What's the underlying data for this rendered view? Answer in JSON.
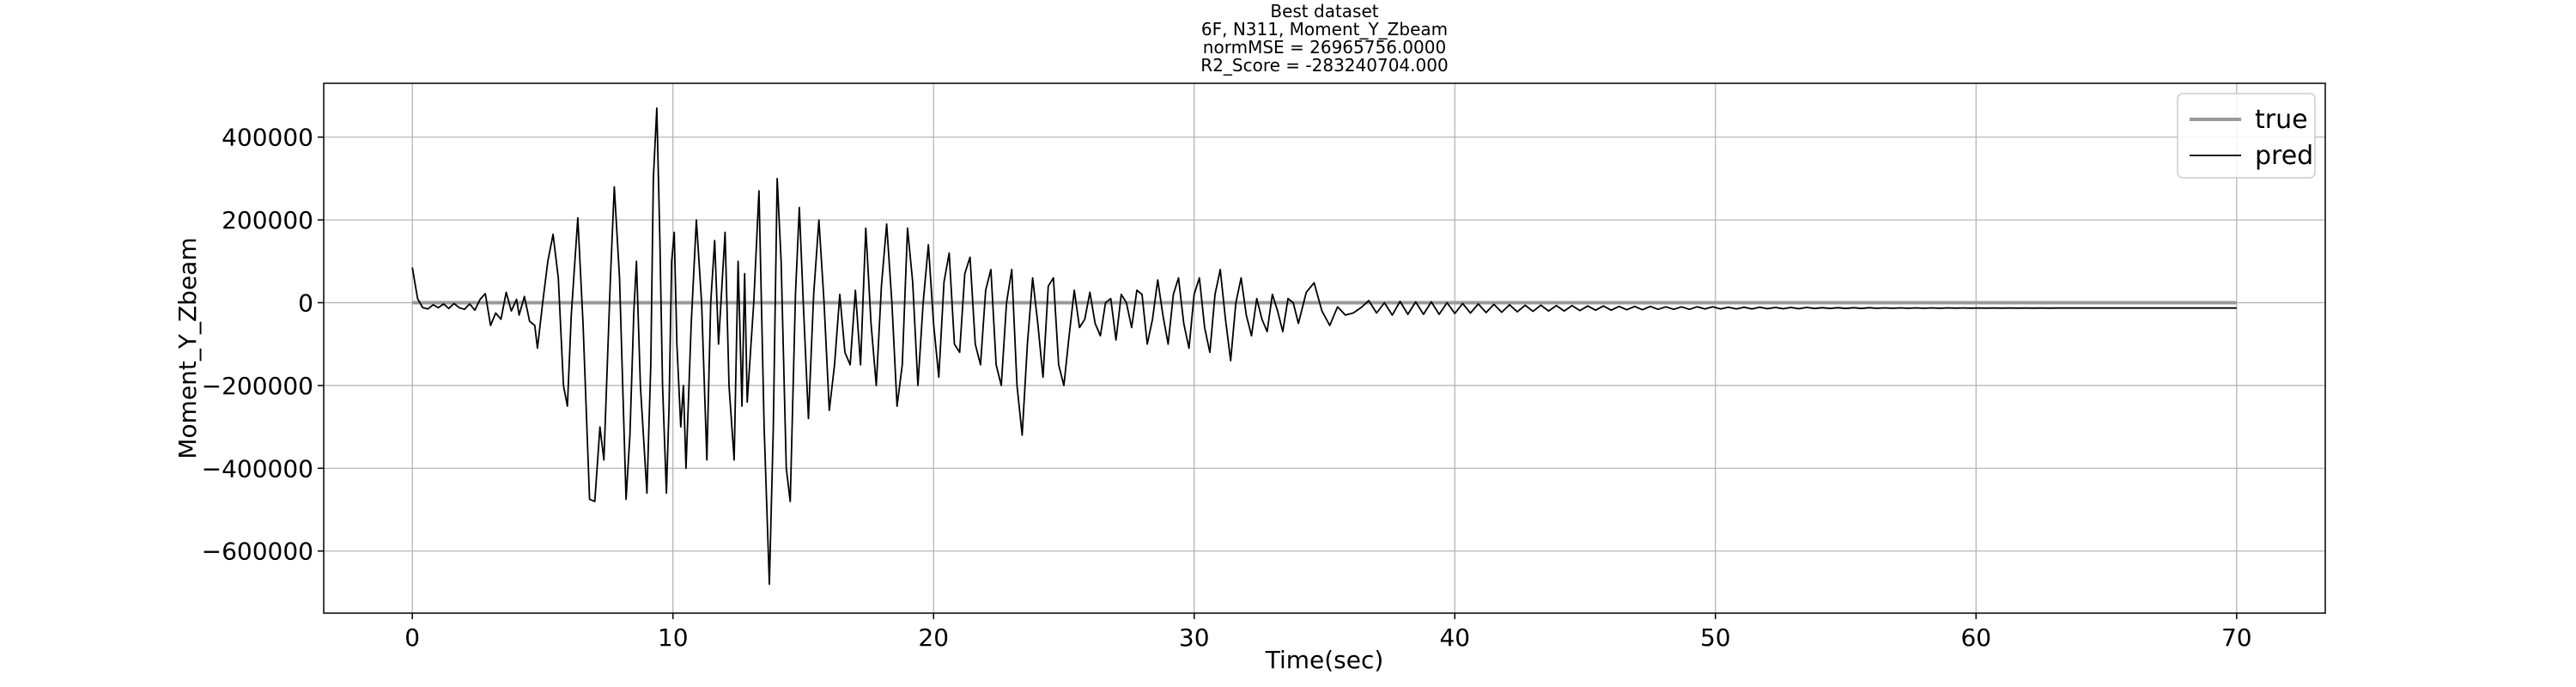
{
  "chart_data": {
    "type": "line",
    "title_lines": [
      "Best dataset",
      "6F, N311, Moment_Y_Zbeam",
      "normMSE = 26965756.0000",
      "R2_Score = -283240704.000"
    ],
    "xlabel": "Time(sec)",
    "ylabel": "Moment_Y_Zbeam",
    "xlim": [
      -3.4,
      73.4
    ],
    "ylim": [
      -750000,
      530000
    ],
    "xticks": [
      0,
      10,
      20,
      30,
      40,
      50,
      60,
      70
    ],
    "yticks": [
      -600000,
      -400000,
      -200000,
      0,
      200000,
      400000
    ],
    "ytick_labels": [
      "−600000",
      "−400000",
      "−200000",
      "0",
      "200000",
      "400000"
    ],
    "xtick_labels": [
      "0",
      "10",
      "20",
      "30",
      "40",
      "50",
      "60",
      "70"
    ],
    "grid": true,
    "legend": "top-right",
    "series": [
      {
        "name": "true",
        "color": "#999999",
        "points": [
          [
            0,
            0
          ],
          [
            70,
            0
          ]
        ]
      },
      {
        "name": "pred",
        "color": "#000000",
        "points": [
          [
            0.0,
            85000
          ],
          [
            0.2,
            10000
          ],
          [
            0.4,
            -12000
          ],
          [
            0.6,
            -15000
          ],
          [
            0.8,
            -5000
          ],
          [
            1.0,
            -12000
          ],
          [
            1.2,
            -3000
          ],
          [
            1.4,
            -14000
          ],
          [
            1.6,
            -2000
          ],
          [
            1.8,
            -12000
          ],
          [
            2.0,
            -16000
          ],
          [
            2.2,
            -3000
          ],
          [
            2.4,
            -18000
          ],
          [
            2.6,
            8000
          ],
          [
            2.8,
            22000
          ],
          [
            3.0,
            -55000
          ],
          [
            3.2,
            -25000
          ],
          [
            3.4,
            -40000
          ],
          [
            3.6,
            25000
          ],
          [
            3.8,
            -20000
          ],
          [
            4.0,
            8000
          ],
          [
            4.1,
            -30000
          ],
          [
            4.3,
            15000
          ],
          [
            4.5,
            -45000
          ],
          [
            4.7,
            -55000
          ],
          [
            4.8,
            -110000
          ],
          [
            5.0,
            0
          ],
          [
            5.2,
            100000
          ],
          [
            5.4,
            165000
          ],
          [
            5.6,
            60000
          ],
          [
            5.8,
            -200000
          ],
          [
            5.95,
            -250000
          ],
          [
            6.1,
            -30000
          ],
          [
            6.35,
            205000
          ],
          [
            6.55,
            -50000
          ],
          [
            6.8,
            -475000
          ],
          [
            7.0,
            -480000
          ],
          [
            7.2,
            -300000
          ],
          [
            7.35,
            -380000
          ],
          [
            7.6,
            60000
          ],
          [
            7.75,
            280000
          ],
          [
            7.95,
            60000
          ],
          [
            8.2,
            -475000
          ],
          [
            8.35,
            -320000
          ],
          [
            8.5,
            -20000
          ],
          [
            8.6,
            100000
          ],
          [
            8.75,
            -200000
          ],
          [
            9.0,
            -460000
          ],
          [
            9.15,
            -150000
          ],
          [
            9.25,
            300000
          ],
          [
            9.38,
            470000
          ],
          [
            9.5,
            150000
          ],
          [
            9.6,
            -200000
          ],
          [
            9.75,
            -460000
          ],
          [
            9.85,
            -250000
          ],
          [
            9.95,
            100000
          ],
          [
            10.05,
            170000
          ],
          [
            10.15,
            -100000
          ],
          [
            10.3,
            -300000
          ],
          [
            10.4,
            -200000
          ],
          [
            10.5,
            -400000
          ],
          [
            10.7,
            -50000
          ],
          [
            10.9,
            200000
          ],
          [
            11.1,
            0
          ],
          [
            11.3,
            -380000
          ],
          [
            11.45,
            0
          ],
          [
            11.6,
            150000
          ],
          [
            11.75,
            -100000
          ],
          [
            12.0,
            170000
          ],
          [
            12.15,
            -200000
          ],
          [
            12.35,
            -380000
          ],
          [
            12.5,
            100000
          ],
          [
            12.65,
            -250000
          ],
          [
            12.75,
            70000
          ],
          [
            12.85,
            -240000
          ],
          [
            13.1,
            0
          ],
          [
            13.3,
            270000
          ],
          [
            13.5,
            -300000
          ],
          [
            13.7,
            -680000
          ],
          [
            13.85,
            -300000
          ],
          [
            14.0,
            300000
          ],
          [
            14.15,
            100000
          ],
          [
            14.35,
            -400000
          ],
          [
            14.5,
            -480000
          ],
          [
            14.7,
            20000
          ],
          [
            14.85,
            230000
          ],
          [
            15.0,
            0
          ],
          [
            15.2,
            -280000
          ],
          [
            15.4,
            20000
          ],
          [
            15.6,
            200000
          ],
          [
            15.8,
            0
          ],
          [
            16.0,
            -260000
          ],
          [
            16.2,
            -150000
          ],
          [
            16.4,
            20000
          ],
          [
            16.6,
            -120000
          ],
          [
            16.8,
            -150000
          ],
          [
            17.0,
            30000
          ],
          [
            17.2,
            -150000
          ],
          [
            17.4,
            180000
          ],
          [
            17.6,
            -50000
          ],
          [
            17.8,
            -200000
          ],
          [
            18.0,
            40000
          ],
          [
            18.2,
            190000
          ],
          [
            18.4,
            0
          ],
          [
            18.6,
            -250000
          ],
          [
            18.8,
            -150000
          ],
          [
            19.0,
            180000
          ],
          [
            19.2,
            50000
          ],
          [
            19.4,
            -200000
          ],
          [
            19.6,
            0
          ],
          [
            19.8,
            140000
          ],
          [
            20.0,
            -50000
          ],
          [
            20.2,
            -180000
          ],
          [
            20.4,
            50000
          ],
          [
            20.6,
            120000
          ],
          [
            20.8,
            -100000
          ],
          [
            21.0,
            -120000
          ],
          [
            21.2,
            70000
          ],
          [
            21.4,
            110000
          ],
          [
            21.6,
            -100000
          ],
          [
            21.8,
            -150000
          ],
          [
            22.0,
            30000
          ],
          [
            22.2,
            80000
          ],
          [
            22.4,
            -150000
          ],
          [
            22.6,
            -200000
          ],
          [
            22.8,
            0
          ],
          [
            23.0,
            80000
          ],
          [
            23.2,
            -200000
          ],
          [
            23.4,
            -320000
          ],
          [
            23.6,
            -100000
          ],
          [
            23.8,
            60000
          ],
          [
            24.0,
            -50000
          ],
          [
            24.2,
            -180000
          ],
          [
            24.4,
            40000
          ],
          [
            24.6,
            60000
          ],
          [
            24.8,
            -150000
          ],
          [
            25.0,
            -200000
          ],
          [
            25.2,
            -80000
          ],
          [
            25.4,
            30000
          ],
          [
            25.6,
            -60000
          ],
          [
            25.8,
            -40000
          ],
          [
            26.0,
            25000
          ],
          [
            26.2,
            -50000
          ],
          [
            26.4,
            -80000
          ],
          [
            26.6,
            0
          ],
          [
            26.8,
            10000
          ],
          [
            27.0,
            -90000
          ],
          [
            27.2,
            20000
          ],
          [
            27.4,
            0
          ],
          [
            27.6,
            -60000
          ],
          [
            27.8,
            30000
          ],
          [
            28.0,
            20000
          ],
          [
            28.2,
            -100000
          ],
          [
            28.4,
            -40000
          ],
          [
            28.6,
            55000
          ],
          [
            28.8,
            -30000
          ],
          [
            29.0,
            -100000
          ],
          [
            29.2,
            20000
          ],
          [
            29.4,
            60000
          ],
          [
            29.6,
            -50000
          ],
          [
            29.8,
            -110000
          ],
          [
            30.0,
            20000
          ],
          [
            30.2,
            60000
          ],
          [
            30.4,
            -60000
          ],
          [
            30.6,
            -120000
          ],
          [
            30.8,
            20000
          ],
          [
            31.0,
            80000
          ],
          [
            31.2,
            -40000
          ],
          [
            31.4,
            -140000
          ],
          [
            31.6,
            0
          ],
          [
            31.8,
            60000
          ],
          [
            32.0,
            -30000
          ],
          [
            32.2,
            -80000
          ],
          [
            32.4,
            10000
          ],
          [
            32.6,
            -40000
          ],
          [
            32.8,
            -70000
          ],
          [
            33.0,
            20000
          ],
          [
            33.2,
            -20000
          ],
          [
            33.4,
            -70000
          ],
          [
            33.6,
            10000
          ],
          [
            33.8,
            0
          ],
          [
            34.0,
            -50000
          ],
          [
            34.3,
            25000
          ],
          [
            34.6,
            48000
          ],
          [
            34.9,
            -20000
          ],
          [
            35.2,
            -55000
          ],
          [
            35.5,
            -10000
          ],
          [
            35.8,
            -30000
          ],
          [
            36.1,
            -25000
          ],
          [
            36.4,
            -12000
          ],
          [
            36.7,
            5000
          ],
          [
            37.0,
            -25000
          ],
          [
            37.3,
            0
          ],
          [
            37.6,
            -30000
          ],
          [
            37.9,
            3000
          ],
          [
            38.2,
            -28000
          ],
          [
            38.5,
            2000
          ],
          [
            38.8,
            -28000
          ],
          [
            39.1,
            2000
          ],
          [
            39.4,
            -28000
          ],
          [
            39.7,
            0
          ],
          [
            40.0,
            -26000
          ],
          [
            40.3,
            -2000
          ],
          [
            40.6,
            -25000
          ],
          [
            40.9,
            -3000
          ],
          [
            41.2,
            -24000
          ],
          [
            41.5,
            -4000
          ],
          [
            41.8,
            -23000
          ],
          [
            42.1,
            -5000
          ],
          [
            42.4,
            -22000
          ],
          [
            42.7,
            -6000
          ],
          [
            43.0,
            -21000
          ],
          [
            43.3,
            -6000
          ],
          [
            43.6,
            -20000
          ],
          [
            43.9,
            -7000
          ],
          [
            44.2,
            -20000
          ],
          [
            44.5,
            -7000
          ],
          [
            44.8,
            -19000
          ],
          [
            45.1,
            -8000
          ],
          [
            45.4,
            -18000
          ],
          [
            45.7,
            -8000
          ],
          [
            46.0,
            -18000
          ],
          [
            46.3,
            -9000
          ],
          [
            46.6,
            -17000
          ],
          [
            46.9,
            -9000
          ],
          [
            47.2,
            -17000
          ],
          [
            47.5,
            -9000
          ],
          [
            47.8,
            -16000
          ],
          [
            48.1,
            -10000
          ],
          [
            48.4,
            -16000
          ],
          [
            48.7,
            -10000
          ],
          [
            49.0,
            -16000
          ],
          [
            49.3,
            -10000
          ],
          [
            49.6,
            -15000
          ],
          [
            49.9,
            -10000
          ],
          [
            50.2,
            -15000
          ],
          [
            50.5,
            -11000
          ],
          [
            50.8,
            -15000
          ],
          [
            51.1,
            -11000
          ],
          [
            51.4,
            -15000
          ],
          [
            51.7,
            -11000
          ],
          [
            52.0,
            -14500
          ],
          [
            52.3,
            -11500
          ],
          [
            52.6,
            -14500
          ],
          [
            52.9,
            -11500
          ],
          [
            53.2,
            -14500
          ],
          [
            53.5,
            -11500
          ],
          [
            53.8,
            -14000
          ],
          [
            54.1,
            -12000
          ],
          [
            54.4,
            -14000
          ],
          [
            54.7,
            -12000
          ],
          [
            55.0,
            -14000
          ],
          [
            55.3,
            -12000
          ],
          [
            55.6,
            -14000
          ],
          [
            55.9,
            -12000
          ],
          [
            56.2,
            -13500
          ],
          [
            56.5,
            -12500
          ],
          [
            56.8,
            -13500
          ],
          [
            57.1,
            -12500
          ],
          [
            57.4,
            -13500
          ],
          [
            57.7,
            -12500
          ],
          [
            58.0,
            -13500
          ],
          [
            58.3,
            -12500
          ],
          [
            58.6,
            -13500
          ],
          [
            58.9,
            -12500
          ],
          [
            59.2,
            -13200
          ],
          [
            59.5,
            -12800
          ],
          [
            59.8,
            -13200
          ],
          [
            60.1,
            -12800
          ],
          [
            60.4,
            -13200
          ],
          [
            60.7,
            -12800
          ],
          [
            61.0,
            -13200
          ],
          [
            61.3,
            -12800
          ],
          [
            61.6,
            -13100
          ],
          [
            61.9,
            -12900
          ],
          [
            62.2,
            -13100
          ],
          [
            62.5,
            -12900
          ],
          [
            62.8,
            -13100
          ],
          [
            63.1,
            -12900
          ],
          [
            63.4,
            -13000
          ],
          [
            64.0,
            -13000
          ],
          [
            66.0,
            -13000
          ],
          [
            68.0,
            -13000
          ],
          [
            70.0,
            -13000
          ]
        ]
      }
    ]
  }
}
